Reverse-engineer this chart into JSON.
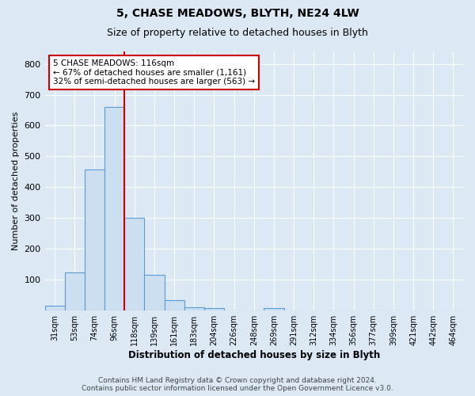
{
  "title1": "5, CHASE MEADOWS, BLYTH, NE24 4LW",
  "title2": "Size of property relative to detached houses in Blyth",
  "xlabel": "Distribution of detached houses by size in Blyth",
  "ylabel": "Number of detached properties",
  "bin_labels": [
    "31sqm",
    "53sqm",
    "74sqm",
    "96sqm",
    "118sqm",
    "139sqm",
    "161sqm",
    "183sqm",
    "204sqm",
    "226sqm",
    "248sqm",
    "269sqm",
    "291sqm",
    "312sqm",
    "334sqm",
    "356sqm",
    "377sqm",
    "399sqm",
    "421sqm",
    "442sqm",
    "464sqm"
  ],
  "bar_heights": [
    15,
    125,
    458,
    660,
    300,
    115,
    35,
    12,
    8,
    0,
    0,
    8,
    0,
    0,
    0,
    0,
    0,
    0,
    0,
    0,
    0
  ],
  "bar_color": "#ccdff0",
  "bar_edge_color": "#5b9bd5",
  "vline_x": 3.5,
  "vline_color": "#cc0000",
  "annotation_text": "5 CHASE MEADOWS: 116sqm\n← 67% of detached houses are smaller (1,161)\n32% of semi-detached houses are larger (563) →",
  "annotation_box_color": "#ffffff",
  "annotation_box_edge": "#cc0000",
  "ylim": [
    0,
    840
  ],
  "yticks": [
    0,
    100,
    200,
    300,
    400,
    500,
    600,
    700,
    800
  ],
  "footer": "Contains HM Land Registry data © Crown copyright and database right 2024.\nContains public sector information licensed under the Open Government Licence v3.0.",
  "bg_color": "#dce9f5",
  "plot_bg_color": "#dce9f5"
}
